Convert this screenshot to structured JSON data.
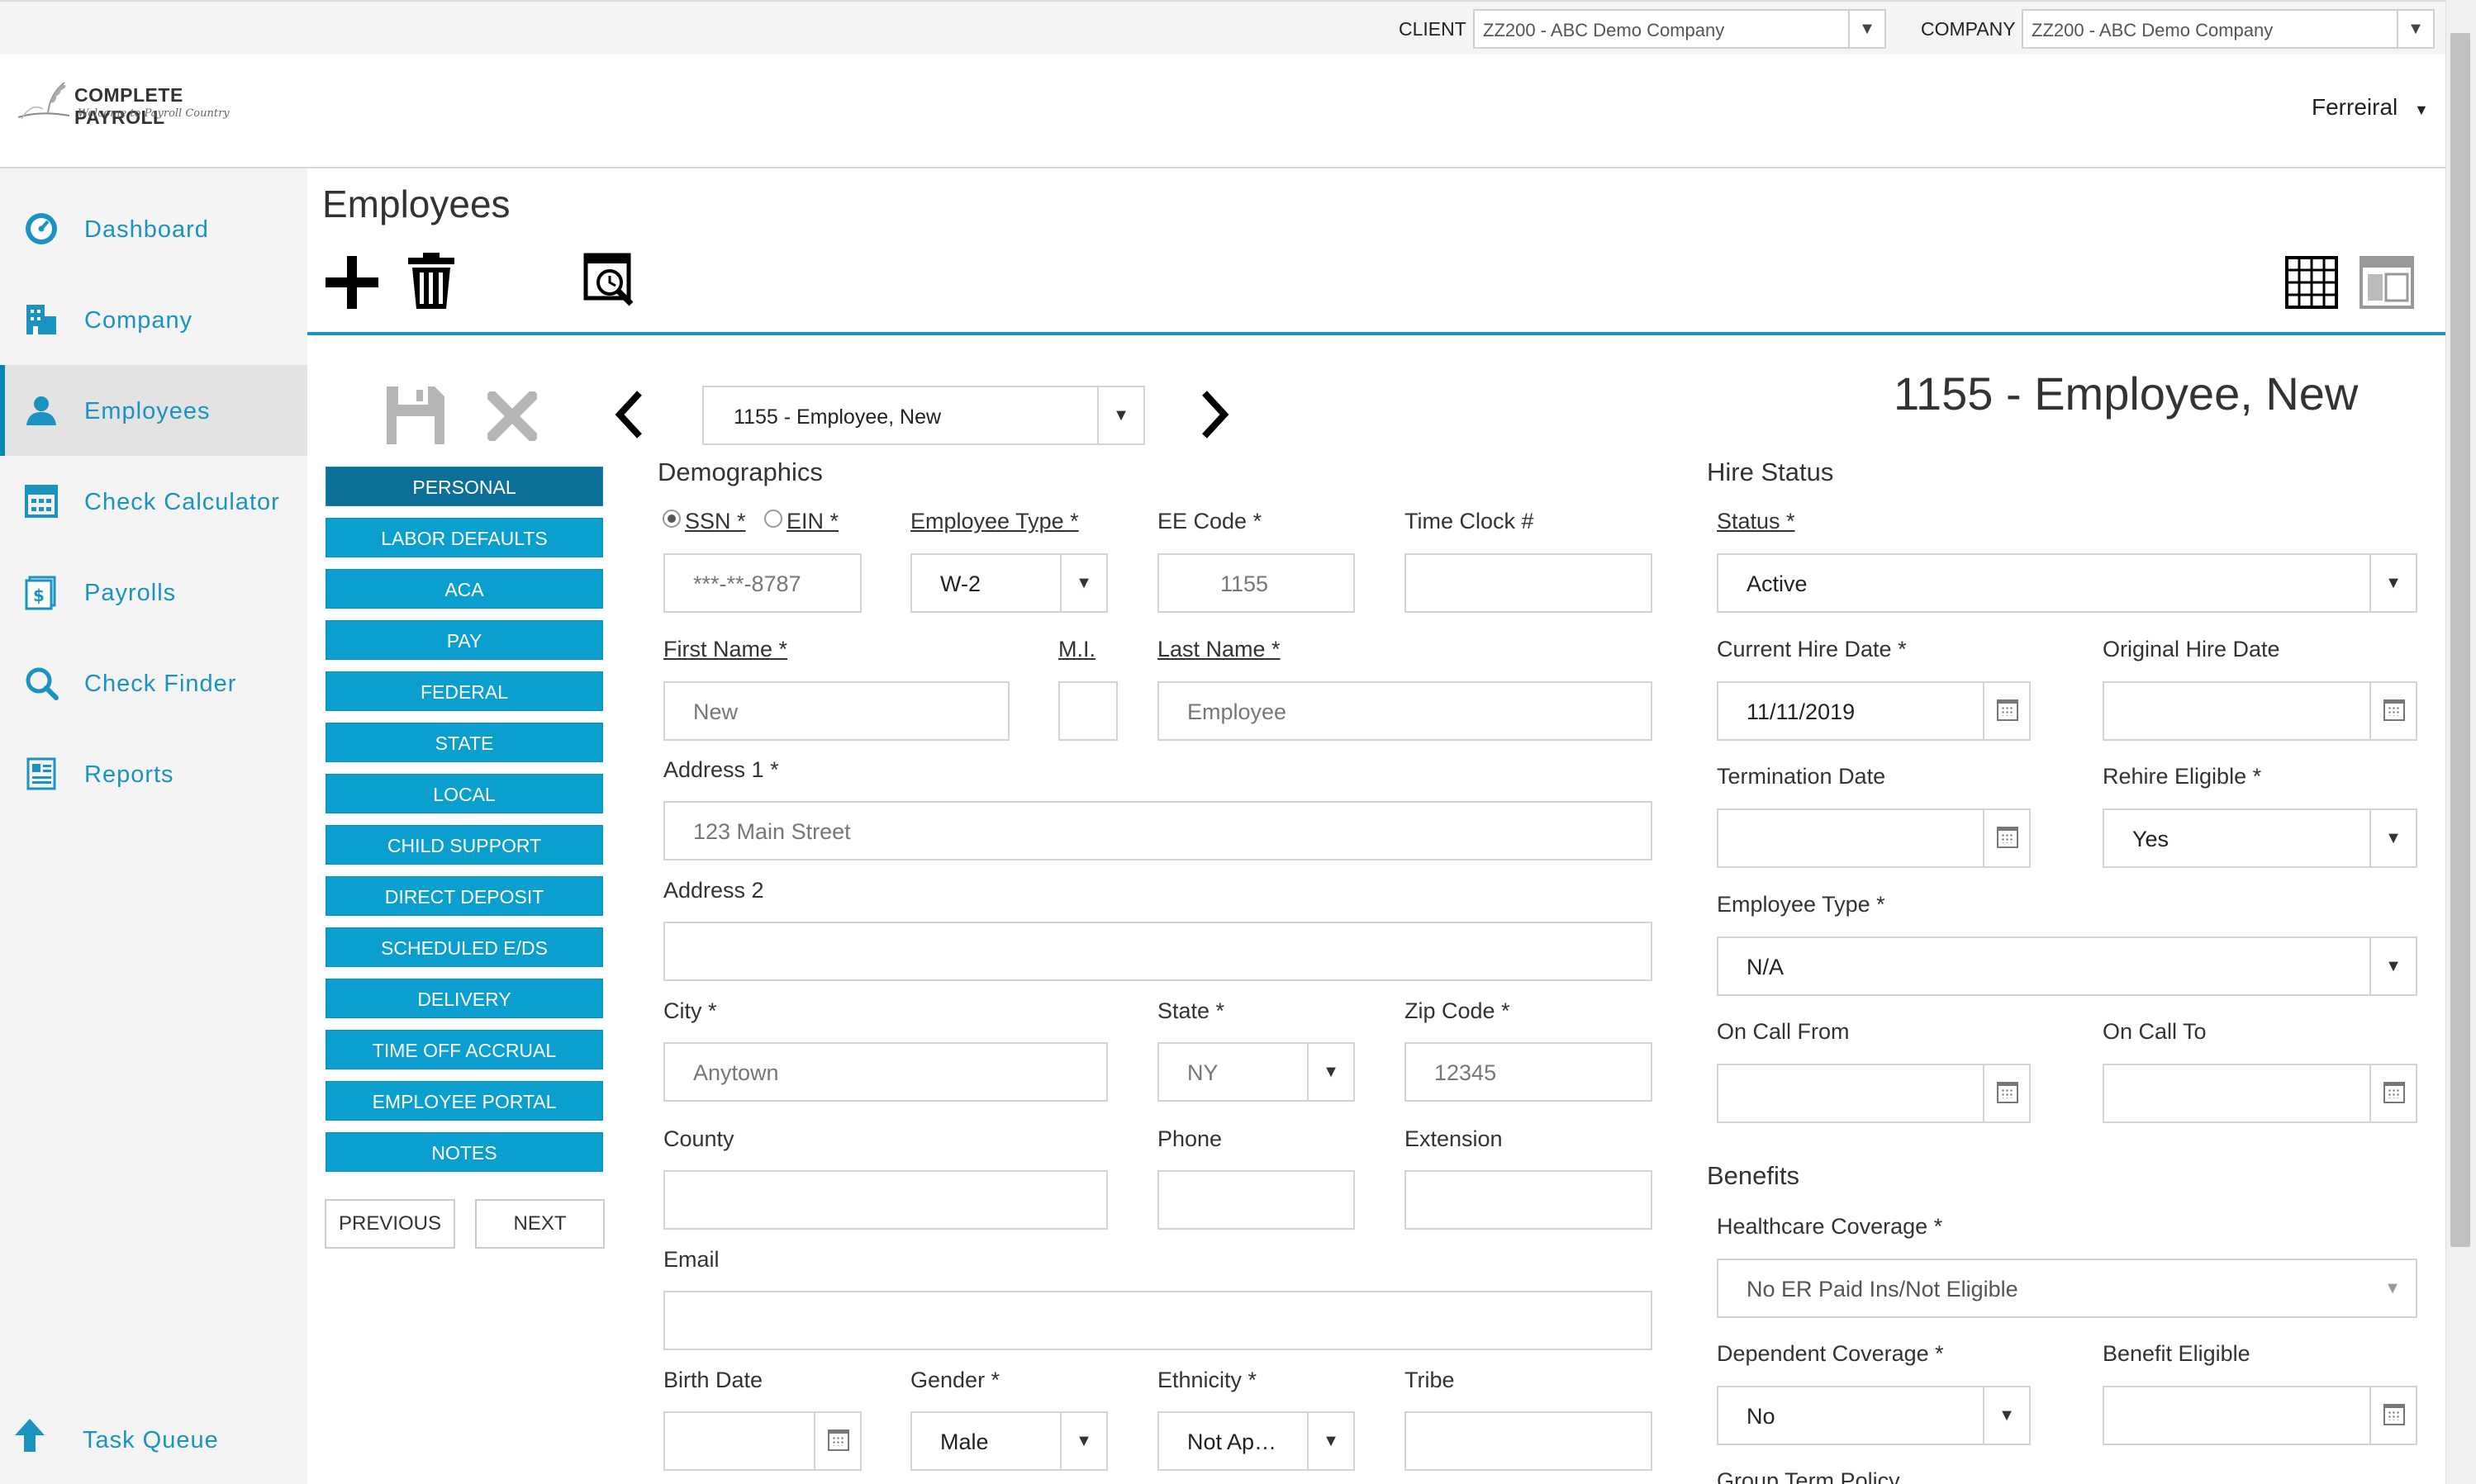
{
  "topbar": {
    "client_label": "CLIENT",
    "client_value": "ZZ200 - ABC Demo Company",
    "company_label": "COMPANY",
    "company_value": "ZZ200 - ABC Demo Company"
  },
  "header": {
    "logo_text": "COMPLETE PAYROLL",
    "logo_sub": "Welcome to Payroll Country",
    "user": "Ferreiral"
  },
  "sidebar": {
    "items": [
      {
        "label": "Dashboard",
        "icon": "dashboard-icon"
      },
      {
        "label": "Company",
        "icon": "building-icon"
      },
      {
        "label": "Employees",
        "icon": "user-icon"
      },
      {
        "label": "Check Calculator",
        "icon": "calculator-icon"
      },
      {
        "label": "Payrolls",
        "icon": "payroll-icon"
      },
      {
        "label": "Check Finder",
        "icon": "search-icon"
      },
      {
        "label": "Reports",
        "icon": "report-icon"
      }
    ],
    "task_queue": "Task Queue"
  },
  "page": {
    "title": "Employees",
    "employee_select": "1155 - Employee, New",
    "employee_heading": "1155 - Employee, New"
  },
  "tabs": [
    "PERSONAL",
    "LABOR DEFAULTS",
    "ACA",
    "PAY",
    "FEDERAL",
    "STATE",
    "LOCAL",
    "CHILD SUPPORT",
    "DIRECT DEPOSIT",
    "SCHEDULED E/DS",
    "DELIVERY",
    "TIME OFF ACCRUAL",
    "EMPLOYEE PORTAL",
    "NOTES"
  ],
  "pager": {
    "previous": "PREVIOUS",
    "next": "NEXT"
  },
  "demographics": {
    "title": "Demographics",
    "ssn_label": "SSN *",
    "ein_label": "EIN *",
    "ssn_value": "***-**-8787",
    "employee_type_label": "Employee Type *",
    "employee_type_value": "W-2",
    "ee_code_label": "EE Code *",
    "ee_code_value": "1155",
    "time_clock_label": "Time Clock #",
    "time_clock_value": "",
    "first_name_label": "First Name *",
    "first_name_value": "New",
    "mi_label": "M.I.",
    "mi_value": "",
    "last_name_label": "Last Name *",
    "last_name_value": "Employee",
    "address1_label": "Address 1 *",
    "address1_value": "123 Main Street",
    "address2_label": "Address 2",
    "address2_value": "",
    "city_label": "City *",
    "city_value": "Anytown",
    "state_label": "State *",
    "state_value": "NY",
    "zip_label": "Zip Code *",
    "zip_value": "12345",
    "county_label": "County",
    "county_value": "",
    "phone_label": "Phone",
    "phone_value": "",
    "extension_label": "Extension",
    "extension_value": "",
    "email_label": "Email",
    "email_value": "",
    "birth_date_label": "Birth Date",
    "birth_date_value": "",
    "gender_label": "Gender *",
    "gender_value": "Male",
    "ethnicity_label": "Ethnicity *",
    "ethnicity_value": "Not Ap…",
    "tribe_label": "Tribe",
    "tribe_value": ""
  },
  "hire_status": {
    "title": "Hire Status",
    "status_label": "Status *",
    "status_value": "Active",
    "current_hire_label": "Current Hire Date *",
    "current_hire_value": "11/11/2019",
    "original_hire_label": "Original Hire Date",
    "original_hire_value": "",
    "termination_label": "Termination Date",
    "termination_value": "",
    "rehire_label": "Rehire Eligible *",
    "rehire_value": "Yes",
    "employee_type_label": "Employee Type *",
    "employee_type_value": "N/A",
    "on_call_from_label": "On Call From",
    "on_call_from_value": "",
    "on_call_to_label": "On Call To",
    "on_call_to_value": ""
  },
  "benefits": {
    "title": "Benefits",
    "healthcare_label": "Healthcare Coverage *",
    "healthcare_value": "No ER Paid Ins/Not Eligible",
    "dependent_label": "Dependent Coverage *",
    "dependent_value": "No",
    "benefit_eligible_label": "Benefit Eligible",
    "benefit_eligible_value": "",
    "group_term_label": "Group Term Policy"
  }
}
